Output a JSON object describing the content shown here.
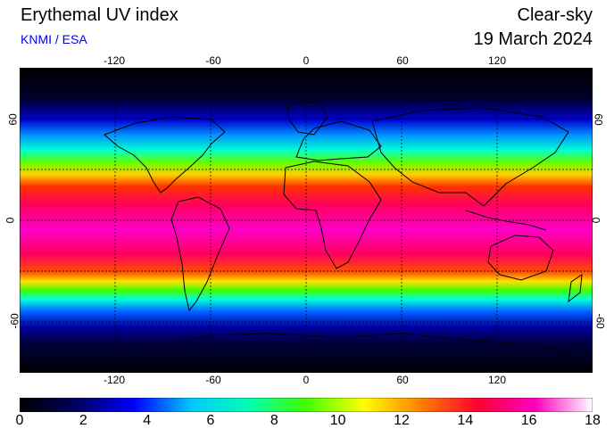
{
  "header": {
    "title": "Erythemal UV index",
    "source": "KNMI / ESA",
    "condition": "Clear-sky",
    "date": "19 March 2024"
  },
  "map": {
    "longitude_labels": [
      "-120",
      "-60",
      "0",
      "60",
      "120"
    ],
    "latitude_labels": [
      "60",
      "0",
      "-60"
    ]
  },
  "colorbar": {
    "min": 0,
    "max": 18,
    "tick_labels": [
      "0",
      "2",
      "4",
      "6",
      "8",
      "10",
      "12",
      "14",
      "16",
      "18"
    ],
    "colors": [
      "#000000",
      "#000060",
      "#0000ff",
      "#00c8ff",
      "#00ffb0",
      "#40ff00",
      "#ffff00",
      "#ff8000",
      "#ff0030",
      "#ff00c0",
      "#ffffff"
    ]
  }
}
